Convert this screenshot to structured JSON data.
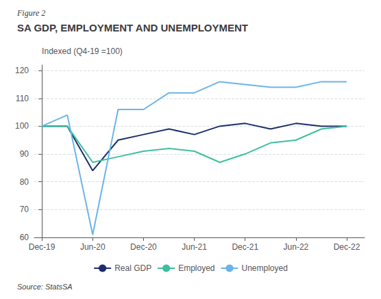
{
  "chart_data": {
    "type": "line",
    "subtitle": "Figure 2",
    "title": "SA GDP, EMPLOYMENT AND UNEMPLOYMENT",
    "ylabel": "Indexed (Q4-19 =100)",
    "annotations": [
      "Source: StatsSA"
    ],
    "x": [
      0,
      0.5,
      1,
      1.5,
      2,
      2.5,
      3,
      3.5,
      4,
      4.5,
      5,
      5.5,
      6
    ],
    "xlim": [
      -0.15,
      6.35
    ],
    "xticks": [
      {
        "value": 0,
        "label": "Dec-19"
      },
      {
        "value": 1,
        "label": "Jun-20"
      },
      {
        "value": 2,
        "label": "Dec-20"
      },
      {
        "value": 3,
        "label": "Jun-21"
      },
      {
        "value": 4,
        "label": "Dec-21"
      },
      {
        "value": 5,
        "label": "Jun-22"
      },
      {
        "value": 6,
        "label": "Dec-22"
      }
    ],
    "ylim": [
      60,
      122
    ],
    "yticks": [
      60,
      70,
      80,
      90,
      100,
      110,
      120
    ],
    "grid": true,
    "legend": "bottom",
    "series": [
      {
        "name": "Real GDP",
        "color": "#1b2d6b",
        "values": [
          100,
          100,
          84,
          95,
          97,
          99,
          97,
          100,
          101,
          99,
          101,
          100,
          100
        ]
      },
      {
        "name": "Employed",
        "color": "#3dbf9e",
        "values": [
          100,
          100,
          87,
          89,
          91,
          92,
          91,
          87,
          90,
          94,
          95,
          99,
          100
        ]
      },
      {
        "name": "Unemployed",
        "color": "#6ab4e8",
        "values": [
          100,
          104,
          61,
          106,
          106,
          112,
          112,
          116,
          115,
          114,
          114,
          116,
          116
        ]
      }
    ]
  }
}
